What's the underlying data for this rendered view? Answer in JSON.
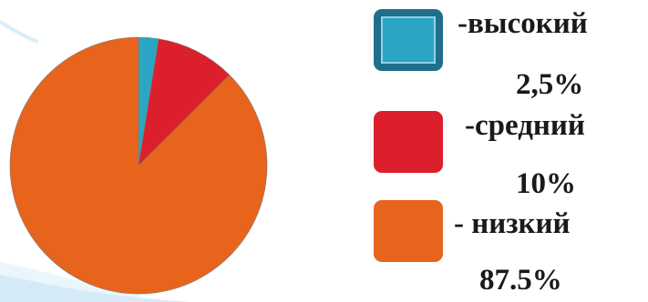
{
  "chart_data": {
    "type": "pie",
    "categories": [
      "высокий",
      "средний",
      "низкий"
    ],
    "values": [
      2.5,
      10,
      87.5
    ],
    "unit": "%",
    "colors": [
      "#2aa6c4",
      "#dc1f2c",
      "#e8641d"
    ],
    "legend": [
      {
        "label": "-высокий",
        "value": "2,5%",
        "color": "#2aa6c4"
      },
      {
        "label": "-средний",
        "value": "10%",
        "color": "#dc1f2c"
      },
      {
        "label": "- низкий",
        "value": "87.5%",
        "color": "#e8641d"
      }
    ],
    "legend_position": "right"
  }
}
